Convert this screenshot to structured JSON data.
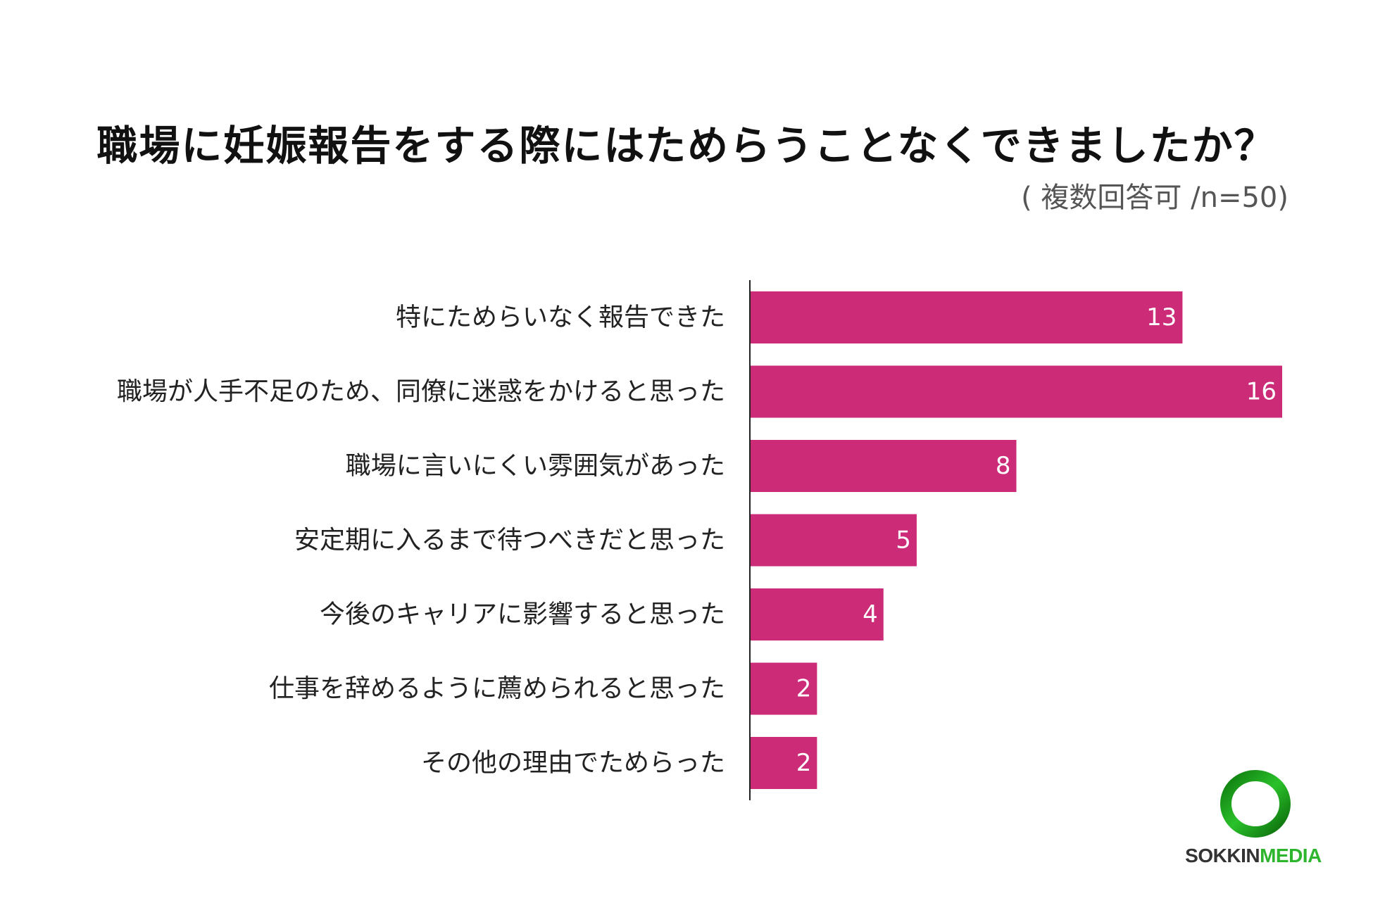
{
  "header": {
    "title": "職場に妊娠報告をする際にはためらうことなくできましたか？",
    "note": "( 複数回答可 /n=50)"
  },
  "chart_data": {
    "type": "bar",
    "orientation": "horizontal",
    "title": "職場に妊娠報告をする際にはためらうことなくできましたか？",
    "subtitle": "( 複数回答可 /n=50)",
    "categories": [
      "特にためらいなく報告できた",
      "職場が人手不足のため、同僚に迷惑をかけると思った",
      "職場に言いにくい雰囲気があった",
      "安定期に入るまで待つべきだと思った",
      "今後のキャリアに影響すると思った",
      "仕事を辞めるように薦められると思った",
      "その他の理由でためらった"
    ],
    "values": [
      13,
      16,
      8,
      5,
      4,
      2,
      2
    ],
    "xlim": [
      0,
      16
    ],
    "bar_color": "#cc2b78",
    "grid": false,
    "value_labels": true
  },
  "logo": {
    "text_part1": "SOKKIN",
    "text_part2": "MEDIA",
    "ring_color": "#1fa51f"
  }
}
